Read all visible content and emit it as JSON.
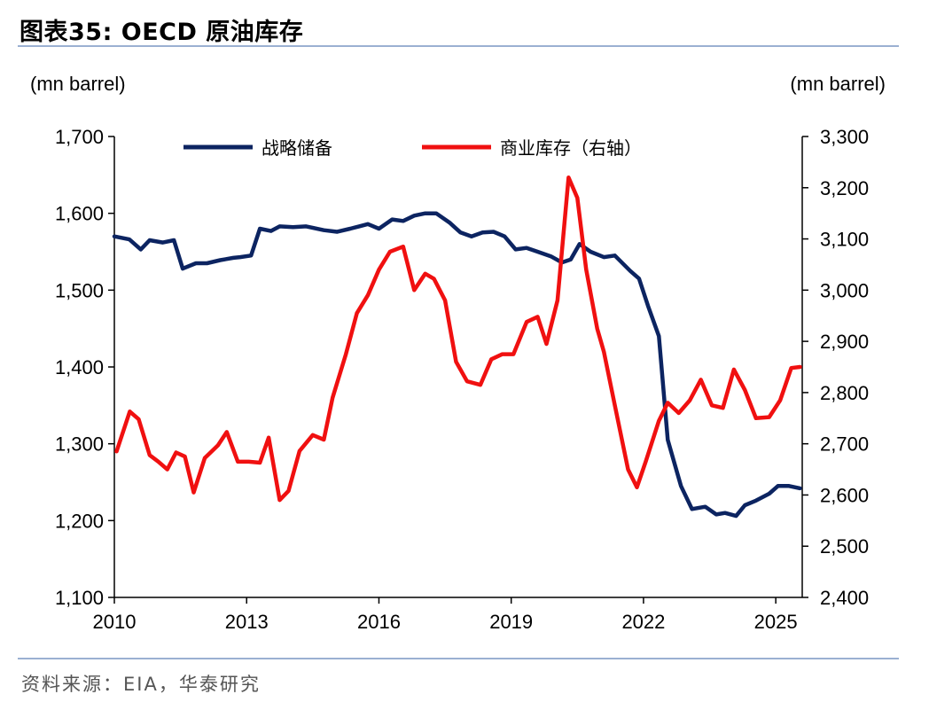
{
  "header": {
    "title": "图表35:  OECD 原油库存"
  },
  "footer": {
    "source": "资料来源：EIA，华泰研究"
  },
  "colors": {
    "spr": "#0c2461",
    "commercial": "#f01010",
    "rule": "#9bb0d2"
  },
  "chart_data": {
    "type": "line",
    "title": "OECD 原油库存",
    "left_unit": "(mn barrel)",
    "right_unit": "(mn barrel)",
    "x_range": [
      2010,
      2025.6
    ],
    "x_ticks": [
      2010,
      2013,
      2016,
      2019,
      2022,
      2025
    ],
    "left_ylim": [
      1100,
      1700
    ],
    "left_ticks": [
      1100,
      1200,
      1300,
      1400,
      1500,
      1600,
      1700
    ],
    "left_tick_labels": [
      "1,100",
      "1,200",
      "1,300",
      "1,400",
      "1,500",
      "1,600",
      "1,700"
    ],
    "right_ylim": [
      2400,
      3300
    ],
    "right_ticks": [
      2400,
      2500,
      2600,
      2700,
      2800,
      2900,
      3000,
      3100,
      3200,
      3300
    ],
    "right_tick_labels": [
      "2,400",
      "2,500",
      "2,600",
      "2,700",
      "2,800",
      "2,900",
      "3,000",
      "3,100",
      "3,200",
      "3,300"
    ],
    "legend": [
      "战略储备",
      "商业库存（右轴）"
    ],
    "series": [
      {
        "name": "战略储备",
        "axis": "left",
        "x": [
          2010.0,
          2010.34,
          2010.6,
          2010.8,
          2011.1,
          2011.35,
          2011.55,
          2011.85,
          2012.1,
          2012.4,
          2012.7,
          2012.85,
          2013.1,
          2013.3,
          2013.55,
          2013.75,
          2014.05,
          2014.35,
          2014.75,
          2015.05,
          2015.35,
          2015.55,
          2015.75,
          2016.0,
          2016.3,
          2016.55,
          2016.8,
          2017.05,
          2017.3,
          2017.6,
          2017.85,
          2018.1,
          2018.35,
          2018.6,
          2018.85,
          2019.1,
          2019.35,
          2019.6,
          2019.9,
          2020.15,
          2020.35,
          2020.55,
          2020.8,
          2021.1,
          2021.35,
          2021.7,
          2021.9,
          2022.1,
          2022.35,
          2022.55,
          2022.85,
          2023.1,
          2023.4,
          2023.65,
          2023.85,
          2024.1,
          2024.3,
          2024.55,
          2024.85,
          2025.05,
          2025.3,
          2025.55
        ],
        "values": [
          1570,
          1566,
          1553,
          1565,
          1562,
          1565,
          1528,
          1535,
          1535,
          1539,
          1542,
          1543,
          1545,
          1580,
          1577,
          1583,
          1582,
          1583,
          1578,
          1576,
          1580,
          1583,
          1586,
          1580,
          1592,
          1590,
          1597,
          1600,
          1600,
          1588,
          1575,
          1570,
          1575,
          1576,
          1570,
          1553,
          1555,
          1550,
          1544,
          1536,
          1540,
          1560,
          1550,
          1543,
          1545,
          1525,
          1515,
          1480,
          1440,
          1305,
          1245,
          1215,
          1218,
          1208,
          1210,
          1206,
          1220,
          1226,
          1235,
          1245,
          1245,
          1242
        ]
      },
      {
        "name": "商业库存（右轴）",
        "axis": "right",
        "x": [
          2010.05,
          2010.35,
          2010.55,
          2010.8,
          2011.0,
          2011.2,
          2011.4,
          2011.6,
          2011.8,
          2012.05,
          2012.35,
          2012.55,
          2012.8,
          2013.05,
          2013.3,
          2013.5,
          2013.75,
          2013.95,
          2014.2,
          2014.5,
          2014.75,
          2014.95,
          2015.25,
          2015.5,
          2015.75,
          2016.0,
          2016.25,
          2016.55,
          2016.8,
          2017.05,
          2017.25,
          2017.5,
          2017.75,
          2018.0,
          2018.3,
          2018.55,
          2018.8,
          2019.05,
          2019.35,
          2019.6,
          2019.8,
          2020.05,
          2020.3,
          2020.5,
          2020.7,
          2020.95,
          2021.1,
          2021.35,
          2021.65,
          2021.85,
          2022.05,
          2022.35,
          2022.55,
          2022.8,
          2023.05,
          2023.3,
          2023.55,
          2023.8,
          2024.05,
          2024.3,
          2024.55,
          2024.85,
          2025.1,
          2025.35,
          2025.55
        ],
        "values": [
          2685,
          2763,
          2748,
          2678,
          2665,
          2650,
          2683,
          2675,
          2605,
          2672,
          2697,
          2723,
          2665,
          2665,
          2663,
          2712,
          2590,
          2608,
          2686,
          2717,
          2708,
          2790,
          2875,
          2955,
          2990,
          3040,
          3075,
          3085,
          3000,
          3032,
          3022,
          2980,
          2860,
          2822,
          2815,
          2865,
          2875,
          2875,
          2938,
          2948,
          2895,
          2980,
          3220,
          3180,
          3040,
          2925,
          2880,
          2775,
          2650,
          2615,
          2665,
          2745,
          2780,
          2760,
          2785,
          2825,
          2775,
          2770,
          2845,
          2805,
          2750,
          2752,
          2785,
          2848,
          2850
        ]
      }
    ]
  }
}
